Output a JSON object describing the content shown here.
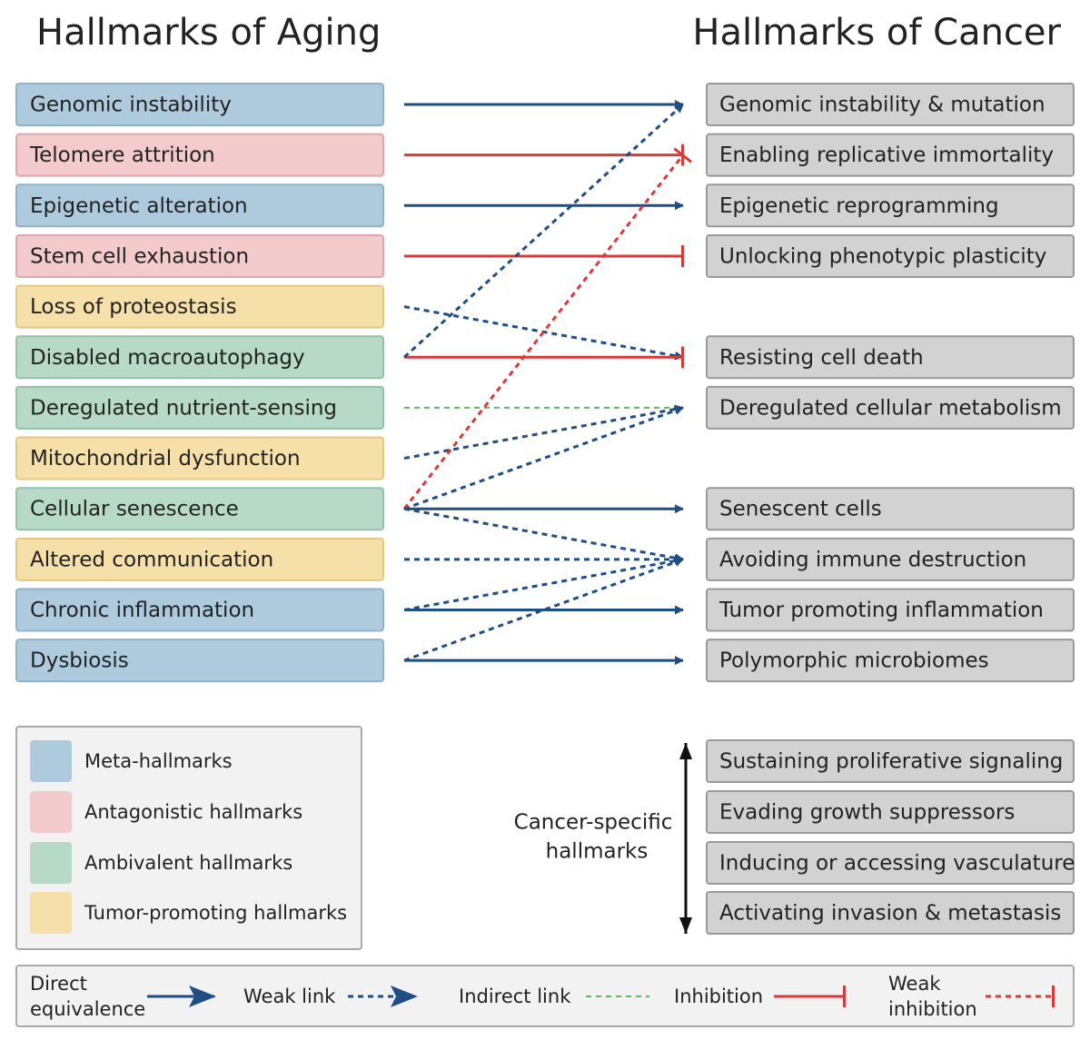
{
  "title_left": "Hallmarks of Aging",
  "title_right": "Hallmarks of Cancer",
  "aging_hallmarks": [
    "Genomic instability",
    "Telomere attrition",
    "Epigenetic alteration",
    "Stem cell exhaustion",
    "Loss of proteostasis",
    "Disabled macroautophagy",
    "Deregulated nutrient-sensing",
    "Mitochondrial dysfunction",
    "Cellular senescence",
    "Altered communication",
    "Chronic inflammation",
    "Dysbiosis"
  ],
  "cancer_hallmarks": [
    "Genomic instability & mutation",
    "Enabling replicative immortality",
    "Epigenetic reprogramming",
    "Unlocking phenotypic plasticity",
    "Resisting cell death",
    "Deregulated cellular metabolism",
    "Senescent cells",
    "Avoiding immune destruction",
    "Tumor promoting inflammation",
    "Polymorphic microbiomes"
  ],
  "cancer_specific": {
    "label": [
      "Cancer-specific",
      "hallmarks"
    ],
    "items": [
      "Sustaining proliferative signaling",
      "Evading growth suppressors",
      "Inducing or accessing vasculature",
      "Activating invasion & metastasis"
    ]
  },
  "legend": [
    "Meta-hallmarks",
    "Antagonistic hallmarks",
    "Ambivalent hallmarks",
    "Tumor-promoting hallmarks"
  ],
  "link_legend": {
    "direct": [
      "Direct",
      "equivalence"
    ],
    "weak": "Weak link",
    "indirect": "Indirect link",
    "inhibition": "Inhibition",
    "weak_inhibition": [
      "Weak",
      "inhibition"
    ]
  }
}
